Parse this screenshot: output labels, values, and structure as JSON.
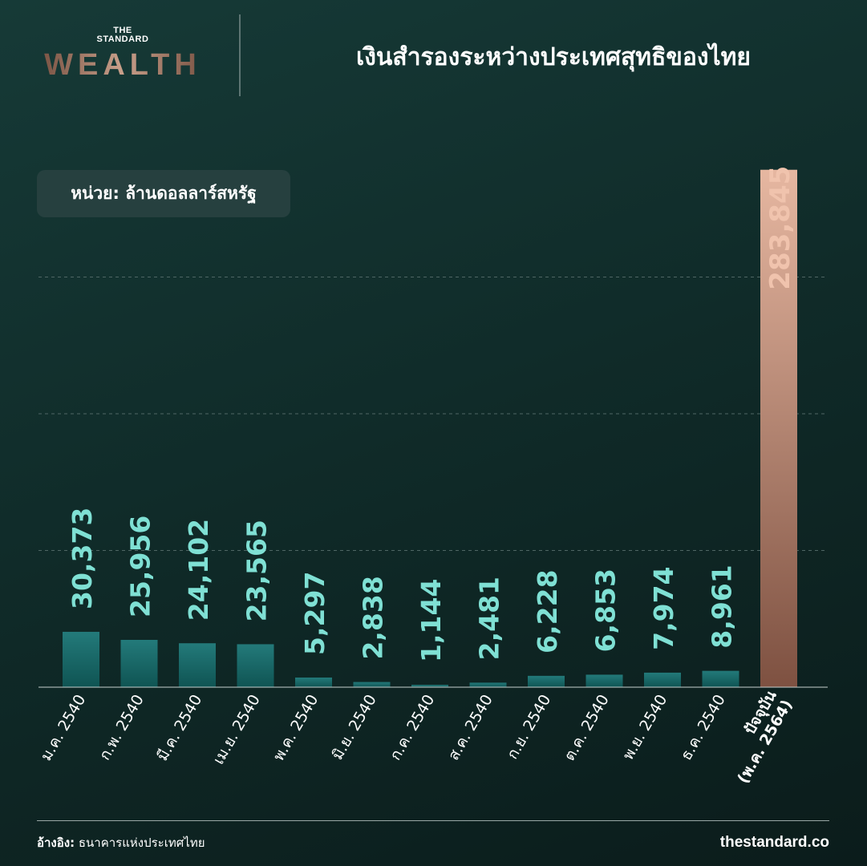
{
  "brand": {
    "top": "THE",
    "middle": "STANDARD",
    "main": "WEALTH"
  },
  "title": "เงินสำรองระหว่างประเทศสุทธิของไทย",
  "unit_label": "หน่วย: ล้านดอลลาร์สหรัฐ",
  "footer": {
    "source_label": "อ้างอิง:",
    "source_text": "ธนาคารแห่งประเทศไทย",
    "site": "thestandard.co"
  },
  "colors": {
    "bar_teal": "#1e6f6f",
    "label_teal": "#7fe0d4",
    "bar_highlight": "#d9a58e",
    "label_highlight": "#f0c3ad",
    "background": "#102b29"
  },
  "chart_data": {
    "type": "bar",
    "title": "เงินสำรองระหว่างประเทศสุทธิของไทย",
    "ylabel": "หน่วย: ล้านดอลลาร์สหรัฐ",
    "grid": true,
    "ylim": [
      0,
      300000
    ],
    "categories": [
      "ม.ค. 2540",
      "ก.พ. 2540",
      "มี.ค. 2540",
      "เม.ย. 2540",
      "พ.ค. 2540",
      "มิ.ย. 2540",
      "ก.ค. 2540",
      "ส.ค. 2540",
      "ก.ย. 2540",
      "ต.ค. 2540",
      "พ.ย. 2540",
      "ธ.ค. 2540",
      "ปัจจุบัน\n(พ.ค. 2564)"
    ],
    "values": [
      30373,
      25956,
      24102,
      23565,
      5297,
      2838,
      1144,
      2481,
      6228,
      6853,
      7974,
      8961,
      283845
    ],
    "value_labels": [
      "30,373",
      "25,956",
      "24,102",
      "23,565",
      "5,297",
      "2,838",
      "1,144",
      "2,481",
      "6,228",
      "6,853",
      "7,974",
      "8,961",
      "283,845"
    ],
    "highlight_index": 12
  }
}
